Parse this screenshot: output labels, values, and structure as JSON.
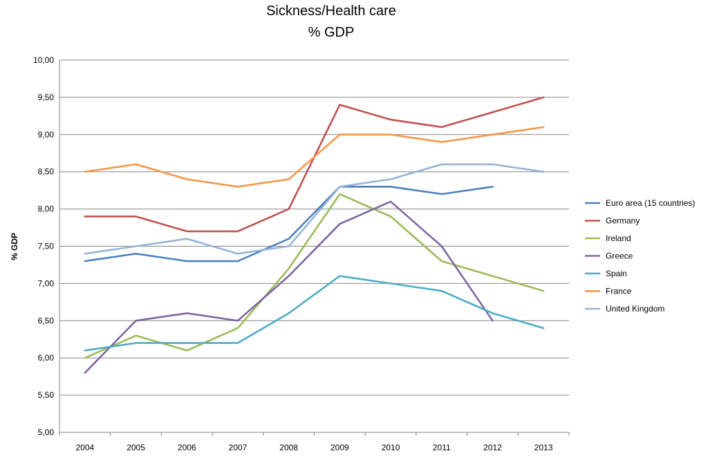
{
  "chart_data": {
    "type": "line",
    "title": "Sickness/Health care",
    "subtitle": "% GDP",
    "xlabel": "",
    "ylabel": "% GDP",
    "ylim": [
      5.0,
      10.0
    ],
    "ytick_values": [
      5.0,
      5.5,
      6.0,
      6.5,
      7.0,
      7.5,
      8.0,
      8.5,
      9.0,
      9.5,
      10.0
    ],
    "ytick_labels": [
      "5,00",
      "5,50",
      "6,00",
      "6,50",
      "7,00",
      "7,50",
      "8,00",
      "8,50",
      "9,00",
      "9,50",
      "10,00"
    ],
    "categories": [
      "2004",
      "2005",
      "2006",
      "2007",
      "2008",
      "2009",
      "2010",
      "2011",
      "2012",
      "2013"
    ],
    "grid": true,
    "legend_position": "right",
    "series": [
      {
        "name": "Euro area (15 countries)",
        "color": "#4F81BD",
        "values": [
          7.3,
          7.4,
          7.3,
          7.3,
          7.6,
          8.3,
          8.3,
          8.2,
          8.3,
          null
        ]
      },
      {
        "name": "Germany",
        "color": "#C0504D",
        "values": [
          7.9,
          7.9,
          7.7,
          7.7,
          8.0,
          9.4,
          9.2,
          9.1,
          9.3,
          9.5
        ]
      },
      {
        "name": "Ireland",
        "color": "#9BBB59",
        "values": [
          6.0,
          6.3,
          6.1,
          6.4,
          7.2,
          8.2,
          7.9,
          7.3,
          7.1,
          6.9
        ]
      },
      {
        "name": "Greece",
        "color": "#8064A2",
        "values": [
          5.8,
          6.5,
          6.6,
          6.5,
          7.1,
          7.8,
          8.1,
          7.5,
          6.5,
          null
        ]
      },
      {
        "name": "Spain",
        "color": "#4BACC6",
        "values": [
          6.1,
          6.2,
          6.2,
          6.2,
          6.6,
          7.1,
          7.0,
          6.9,
          6.6,
          6.4
        ]
      },
      {
        "name": "France",
        "color": "#F79646",
        "values": [
          8.5,
          8.6,
          8.4,
          8.3,
          8.4,
          9.0,
          9.0,
          8.9,
          9.0,
          9.1
        ]
      },
      {
        "name": "United Kingdom",
        "color": "#95B3D7",
        "values": [
          7.4,
          7.5,
          7.6,
          7.4,
          7.5,
          8.3,
          8.4,
          8.6,
          8.6,
          8.5
        ]
      }
    ]
  }
}
